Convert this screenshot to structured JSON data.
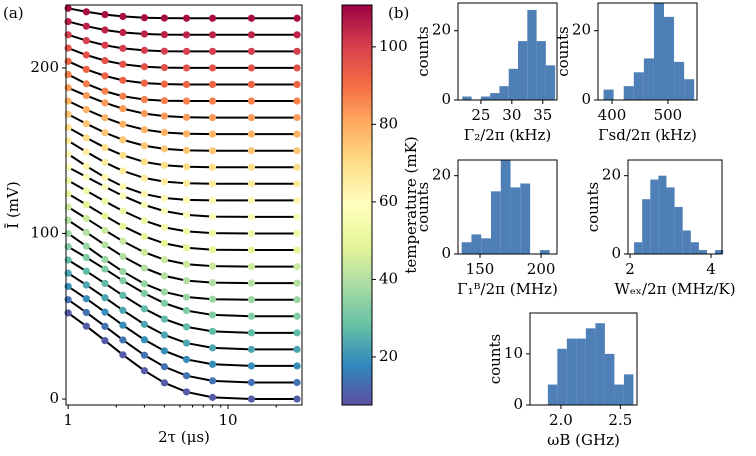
{
  "chart_data": [
    {
      "type": "line",
      "panel_label": "(a)",
      "xlabel": "2τ (μs)",
      "ylabel": "Ī (mV)",
      "xscale": "log",
      "xlim": [
        0.97,
        29
      ],
      "xticks": [
        1,
        10
      ],
      "xminor_ticks": [
        2,
        3,
        4,
        5,
        6,
        7,
        8,
        9,
        20
      ],
      "ylim": [
        -3.6,
        238
      ],
      "yticks": [
        0,
        100,
        200
      ],
      "line_color": "#000000",
      "x": [
        1,
        1.3,
        1.7,
        2.2,
        3,
        4,
        5.5,
        8,
        14,
        27
      ],
      "series": [
        {
          "temperature": 10,
          "values": [
            52,
            44,
            35.3,
            26.7,
            17.1,
            9.8,
            4.3,
            1.0,
            0,
            0
          ]
        },
        {
          "temperature": 14,
          "values": [
            60,
            52.3,
            43.9,
            35.7,
            26.5,
            19.5,
            14.1,
            11.0,
            10,
            10
          ]
        },
        {
          "temperature": 19,
          "values": [
            68,
            60.6,
            52.5,
            44.6,
            35.8,
            29.1,
            23.9,
            21.0,
            20,
            20
          ]
        },
        {
          "temperature": 23,
          "values": [
            76,
            68.9,
            61.2,
            53.6,
            45.1,
            38.7,
            33.8,
            30.9,
            30,
            30
          ]
        },
        {
          "temperature": 27,
          "values": [
            84,
            77.2,
            69.8,
            62.6,
            54.5,
            48.3,
            43.6,
            40.9,
            40,
            40
          ]
        },
        {
          "temperature": 32,
          "values": [
            92,
            85.5,
            78.5,
            71.5,
            63.8,
            57.9,
            53.4,
            50.8,
            50,
            50
          ]
        },
        {
          "temperature": 36,
          "values": [
            100,
            92.3,
            84.3,
            77.0,
            69.6,
            64.7,
            61.6,
            60.3,
            60,
            60
          ]
        },
        {
          "temperature": 40,
          "values": [
            108,
            100.7,
            93.1,
            86.1,
            79.1,
            74.4,
            71.5,
            70.3,
            70,
            70
          ]
        },
        {
          "temperature": 44,
          "values": [
            116,
            109.1,
            101.9,
            95.3,
            88.6,
            84.2,
            81.4,
            80.3,
            80,
            80
          ]
        },
        {
          "temperature": 49,
          "values": [
            124,
            117.4,
            110.6,
            104.4,
            98.2,
            94.0,
            91.4,
            90.2,
            90,
            90
          ]
        },
        {
          "temperature": 53,
          "values": [
            132,
            125.8,
            119.4,
            113.6,
            107.7,
            103.7,
            101.3,
            100.2,
            100,
            100
          ]
        },
        {
          "temperature": 57,
          "values": [
            140,
            134.2,
            128.2,
            122.7,
            117.2,
            113.5,
            111.2,
            110.2,
            110,
            110
          ]
        },
        {
          "temperature": 62,
          "values": [
            148,
            140.7,
            133.9,
            128.4,
            123.8,
            121.4,
            120.3,
            120.0,
            120,
            120
          ]
        },
        {
          "temperature": 66,
          "values": [
            156,
            149.3,
            142.9,
            137.8,
            133.5,
            131.3,
            130.3,
            130.0,
            130,
            130
          ]
        },
        {
          "temperature": 70,
          "values": [
            164,
            157.8,
            151.9,
            147.2,
            143.2,
            141.2,
            140.3,
            140.0,
            140,
            140
          ]
        },
        {
          "temperature": 75,
          "values": [
            172,
            166.3,
            160.9,
            156.6,
            153.0,
            151.1,
            150.2,
            150.0,
            150,
            150
          ]
        },
        {
          "temperature": 79,
          "values": [
            180,
            174.8,
            169.9,
            166.0,
            162.7,
            161.0,
            160.2,
            160.0,
            160,
            160
          ]
        },
        {
          "temperature": 83,
          "values": [
            188,
            183.3,
            178.9,
            175.4,
            172.4,
            170.9,
            170.2,
            170.0,
            170,
            170
          ]
        },
        {
          "temperature": 87,
          "values": [
            196,
            190.4,
            185.9,
            182.9,
            180.9,
            180.2,
            180.0,
            180,
            180,
            180
          ]
        },
        {
          "temperature": 92,
          "values": [
            204,
            199.1,
            195.2,
            192.5,
            190.8,
            190.2,
            190.0,
            190,
            190,
            190
          ]
        },
        {
          "temperature": 96,
          "values": [
            212,
            207.8,
            204.4,
            202.2,
            200.7,
            200.2,
            200,
            200,
            200,
            200
          ]
        },
        {
          "temperature": 100,
          "values": [
            220,
            216.5,
            213.7,
            211.8,
            210.6,
            210.1,
            210,
            210,
            210,
            210
          ]
        },
        {
          "temperature": 105,
          "values": [
            228,
            225.2,
            222.9,
            221.4,
            220.5,
            220.1,
            220,
            220,
            220,
            220
          ]
        },
        {
          "temperature": 109,
          "values": [
            236,
            233.9,
            232.2,
            231.1,
            230.3,
            230.1,
            230,
            230,
            230,
            230
          ]
        }
      ],
      "colorbar": {
        "label": "temperature (mK)",
        "zlim": [
          7.6,
          110.8
        ],
        "zticks": [
          20,
          40,
          60,
          80,
          100
        ],
        "colormap": [
          "#5e4fa2",
          "#3288bd",
          "#66c2a5",
          "#abdda4",
          "#e6f598",
          "#ffffbf",
          "#fee08b",
          "#fdae61",
          "#f46d43",
          "#d53e4f",
          "#9e0142"
        ]
      }
    },
    {
      "type": "histogram",
      "panel_label": "(b)",
      "xlabel": "Γ₂/2π (kHz)",
      "ylabel": "counts",
      "color": "#4e7fb6",
      "bins": [
        22,
        23.5,
        25,
        26.5,
        28,
        29.5,
        31,
        32.5,
        34,
        35.5,
        37
      ],
      "counts": [
        1,
        0,
        1,
        2,
        4,
        9,
        17,
        26,
        17,
        10
      ],
      "xlim": [
        21.3,
        37.3
      ],
      "xticks": [
        25,
        30,
        35
      ],
      "ylim": [
        0,
        28
      ],
      "yticks": [
        0,
        20
      ]
    },
    {
      "type": "histogram",
      "xlabel": "Γsd/2π (kHz)",
      "ylabel": "counts",
      "color": "#4e7fb6",
      "bins": [
        385,
        403,
        421,
        439,
        457,
        475,
        493,
        511,
        529,
        547
      ],
      "counts": [
        3,
        0,
        4,
        8,
        12,
        28,
        24,
        11,
        6
      ],
      "xlim": [
        375,
        552
      ],
      "xticks": [
        400,
        500
      ],
      "ylim": [
        0,
        28
      ],
      "yticks": [
        0,
        20
      ]
    },
    {
      "type": "histogram",
      "xlabel": "Γ₁ᴮ/2π (MHz)",
      "ylabel": "counts",
      "color": "#4e7fb6",
      "bins": [
        135,
        143,
        151,
        159,
        167,
        175,
        183,
        191,
        199,
        207
      ],
      "counts": [
        3,
        5,
        4,
        16,
        24,
        17,
        18,
        0,
        1
      ],
      "xlim": [
        132,
        213
      ],
      "xticks": [
        150,
        200
      ],
      "ylim": [
        0,
        24
      ],
      "yticks": [
        0,
        20
      ]
    },
    {
      "type": "histogram",
      "xlabel": "Wₑₓ/2π (MHz/K)",
      "ylabel": "counts",
      "color": "#4e7fb6",
      "bins": [
        2.1,
        2.3,
        2.5,
        2.7,
        2.9,
        3.1,
        3.3,
        3.5,
        3.7,
        3.9,
        4.1,
        4.3
      ],
      "counts": [
        3,
        14,
        19,
        20,
        17,
        12,
        6,
        3,
        1,
        0,
        1
      ],
      "xlim": [
        1.95,
        4.27
      ],
      "xticks": [
        2,
        4
      ],
      "ylim": [
        0,
        24
      ],
      "yticks": [
        0,
        20
      ]
    },
    {
      "type": "histogram",
      "xlabel": "ωB (GHz)",
      "ylabel": "counts",
      "color": "#4e7fb6",
      "bins": [
        1.89,
        1.97,
        2.05,
        2.13,
        2.21,
        2.29,
        2.37,
        2.45,
        2.53,
        2.61
      ],
      "counts": [
        4,
        11,
        13,
        13,
        15,
        16,
        10,
        4,
        6
      ],
      "xlim": [
        1.74,
        2.64
      ],
      "xticks": [
        {
          "value": 2,
          "label": "2.0"
        },
        {
          "value": 2.5,
          "label": "2.5"
        }
      ],
      "ylim": [
        0,
        18
      ],
      "yticks": [
        0,
        10
      ]
    }
  ]
}
